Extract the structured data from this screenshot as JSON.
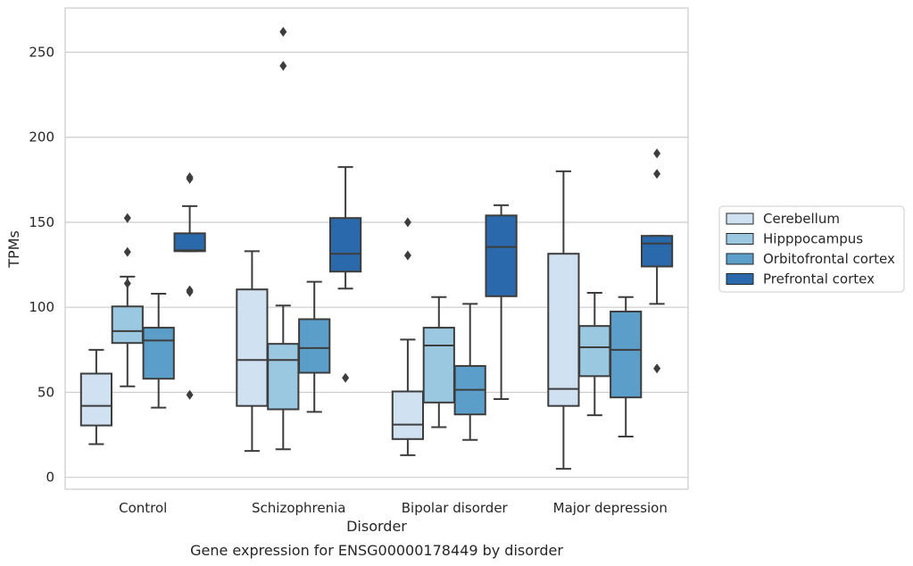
{
  "chart_data": {
    "type": "box",
    "title": "",
    "xlabel": "Disorder",
    "ylabel": "TPMs",
    "caption": "Gene expression for ENSG00000178449 by disorder",
    "ylim": [
      -7,
      276
    ],
    "yticks": [
      0,
      50,
      100,
      150,
      200,
      250
    ],
    "grid": "horizontal",
    "legend_position": "right",
    "categories": [
      "Control",
      "Schizophrenia",
      "Bipolar disorder",
      "Major depression"
    ],
    "series": [
      {
        "name": "Cerebellum",
        "color": "#d0e1f2",
        "boxes": [
          {
            "whisker_low": 19.5,
            "q1": 30.5,
            "median": 42,
            "q3": 61,
            "whisker_high": 75,
            "outliers": []
          },
          {
            "whisker_low": 15.5,
            "q1": 42,
            "median": 69,
            "q3": 110.5,
            "whisker_high": 133,
            "outliers": []
          },
          {
            "whisker_low": 13,
            "q1": 22.5,
            "median": 31,
            "q3": 50.5,
            "whisker_high": 81,
            "outliers": [
              130.5,
              150
            ]
          },
          {
            "whisker_low": 5,
            "q1": 42,
            "median": 52,
            "q3": 131.5,
            "whisker_high": 180,
            "outliers": []
          }
        ]
      },
      {
        "name": "Hipppocampus",
        "color": "#9ac8e0",
        "boxes": [
          {
            "whisker_low": 53.5,
            "q1": 79,
            "median": 86,
            "q3": 100.5,
            "whisker_high": 118,
            "outliers": [
              114,
              132.5,
              152.5
            ]
          },
          {
            "whisker_low": 16.5,
            "q1": 40,
            "median": 69,
            "q3": 78.5,
            "whisker_high": 101,
            "outliers": [
              242,
              262
            ]
          },
          {
            "whisker_low": 29.5,
            "q1": 44,
            "median": 77.5,
            "q3": 88,
            "whisker_high": 106,
            "outliers": []
          },
          {
            "whisker_low": 36.5,
            "q1": 59.5,
            "median": 76.5,
            "q3": 89,
            "whisker_high": 108.5,
            "outliers": []
          }
        ]
      },
      {
        "name": "Orbitofrontal cortex",
        "color": "#5b9ec9",
        "boxes": [
          {
            "whisker_low": 41,
            "q1": 58,
            "median": 80.5,
            "q3": 88,
            "whisker_high": 108,
            "outliers": []
          },
          {
            "whisker_low": 38.5,
            "q1": 61.5,
            "median": 76,
            "q3": 93,
            "whisker_high": 115,
            "outliers": []
          },
          {
            "whisker_low": 22,
            "q1": 37,
            "median": 51.5,
            "q3": 65.5,
            "whisker_high": 102,
            "outliers": []
          },
          {
            "whisker_low": 24,
            "q1": 47,
            "median": 75,
            "q3": 97.5,
            "whisker_high": 106,
            "outliers": []
          }
        ]
      },
      {
        "name": "Prefrontal cortex",
        "color": "#2a6aac",
        "boxes": [
          {
            "whisker_low": 133,
            "q1": 133,
            "median": 133.5,
            "q3": 143.5,
            "whisker_high": 159.5,
            "outliers": [
              48.5,
              109,
              110,
              175.5,
              176.5
            ]
          },
          {
            "whisker_low": 111,
            "q1": 121,
            "median": 131.5,
            "q3": 152.5,
            "whisker_high": 182.5,
            "outliers": [
              58.5
            ]
          },
          {
            "whisker_low": 46,
            "q1": 106.5,
            "median": 135.5,
            "q3": 154,
            "whisker_high": 160,
            "outliers": []
          },
          {
            "whisker_low": 102,
            "q1": 124,
            "median": 137.5,
            "q3": 142,
            "whisker_high": 142,
            "outliers": [
              64,
              178.5,
              190.5
            ]
          }
        ]
      }
    ]
  }
}
